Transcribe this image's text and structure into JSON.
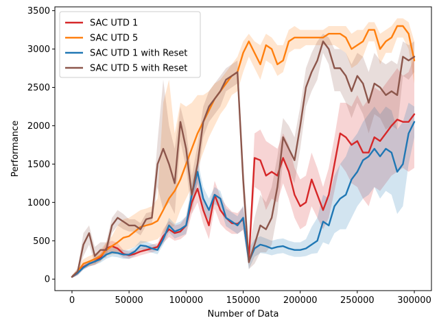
{
  "chart_data": {
    "type": "line",
    "title": "",
    "xlabel": "Number of Data",
    "ylabel": "Performance",
    "xlim": [
      -15000,
      315000
    ],
    "ylim": [
      -150,
      3550
    ],
    "xticks": [
      0,
      50000,
      100000,
      150000,
      200000,
      250000,
      300000
    ],
    "yticks": [
      0,
      500,
      1000,
      1500,
      2000,
      2500,
      3000,
      3500
    ],
    "legend_position": "top-left",
    "grid": false,
    "series": [
      {
        "name": "SAC UTD 1",
        "color": "#d62728",
        "x": [
          0,
          5000,
          10000,
          15000,
          20000,
          25000,
          30000,
          35000,
          40000,
          45000,
          50000,
          55000,
          60000,
          65000,
          70000,
          75000,
          80000,
          85000,
          90000,
          95000,
          100000,
          105000,
          110000,
          115000,
          120000,
          125000,
          130000,
          135000,
          140000,
          145000,
          150000,
          155000,
          160000,
          165000,
          170000,
          175000,
          180000,
          185000,
          190000,
          195000,
          200000,
          205000,
          210000,
          215000,
          220000,
          225000,
          230000,
          235000,
          240000,
          245000,
          250000,
          255000,
          260000,
          265000,
          270000,
          275000,
          280000,
          285000,
          290000,
          295000,
          300000
        ],
        "y": [
          30,
          80,
          160,
          200,
          230,
          280,
          400,
          430,
          400,
          330,
          310,
          330,
          360,
          380,
          400,
          420,
          560,
          650,
          600,
          620,
          700,
          1000,
          1180,
          900,
          700,
          1100,
          900,
          800,
          730,
          720,
          780,
          260,
          1580,
          1550,
          1350,
          1400,
          1350,
          1580,
          1400,
          1100,
          950,
          1000,
          1300,
          1100,
          900,
          1100,
          1500,
          1900,
          1850,
          1750,
          1800,
          1650,
          1650,
          1850,
          1800,
          1900,
          2000,
          2080,
          2050,
          2050,
          2150
        ],
        "upper": [
          50,
          110,
          190,
          240,
          280,
          330,
          470,
          500,
          470,
          380,
          360,
          380,
          410,
          430,
          450,
          470,
          650,
          760,
          700,
          720,
          820,
          1150,
          1350,
          1080,
          880,
          1280,
          1080,
          960,
          880,
          860,
          940,
          400,
          1900,
          1950,
          1800,
          1750,
          1700,
          1900,
          1750,
          1450,
          1300,
          1350,
          1650,
          1450,
          1200,
          1450,
          1850,
          2300,
          2300,
          2250,
          2400,
          2250,
          2350,
          2500,
          2450,
          2550,
          2650,
          2750,
          2650,
          2700,
          2900
        ],
        "lower": [
          15,
          50,
          130,
          165,
          185,
          235,
          340,
          360,
          330,
          280,
          265,
          285,
          310,
          330,
          350,
          370,
          470,
          550,
          500,
          520,
          580,
          850,
          1000,
          720,
          520,
          920,
          720,
          640,
          590,
          590,
          640,
          180,
          1200,
          1150,
          900,
          1050,
          1000,
          1250,
          1050,
          800,
          650,
          700,
          950,
          800,
          650,
          800,
          1150,
          1500,
          1400,
          1250,
          1200,
          1050,
          950,
          1200,
          1150,
          1250,
          1350,
          1400,
          1450,
          1400,
          1450
        ]
      },
      {
        "name": "SAC UTD 5",
        "color": "#ff7f0e",
        "x": [
          0,
          5000,
          10000,
          15000,
          20000,
          25000,
          30000,
          35000,
          40000,
          45000,
          50000,
          55000,
          60000,
          65000,
          70000,
          75000,
          80000,
          85000,
          90000,
          95000,
          100000,
          105000,
          110000,
          115000,
          120000,
          125000,
          130000,
          135000,
          140000,
          145000,
          150000,
          155000,
          160000,
          165000,
          170000,
          175000,
          180000,
          185000,
          190000,
          195000,
          200000,
          205000,
          210000,
          215000,
          220000,
          225000,
          230000,
          235000,
          240000,
          245000,
          250000,
          255000,
          260000,
          265000,
          270000,
          275000,
          280000,
          285000,
          290000,
          295000,
          300000
        ],
        "y": [
          30,
          100,
          200,
          230,
          260,
          300,
          380,
          430,
          480,
          540,
          560,
          620,
          680,
          700,
          720,
          760,
          900,
          1050,
          1150,
          1300,
          1500,
          1700,
          1900,
          2050,
          2200,
          2350,
          2450,
          2550,
          2650,
          2700,
          2950,
          3100,
          2950,
          2800,
          3050,
          3000,
          2800,
          2850,
          3100,
          3150,
          3150,
          3150,
          3150,
          3150,
          3150,
          3200,
          3200,
          3200,
          3150,
          3000,
          3050,
          3100,
          3250,
          3250,
          3000,
          3100,
          3150,
          3300,
          3300,
          3200,
          2850
        ],
        "upper": [
          50,
          140,
          260,
          300,
          330,
          380,
          480,
          560,
          700,
          780,
          800,
          850,
          900,
          920,
          950,
          1050,
          2300,
          2600,
          1900,
          2300,
          2250,
          2300,
          2400,
          2400,
          2450,
          2550,
          2600,
          2700,
          2800,
          2900,
          3100,
          3200,
          3100,
          3050,
          3200,
          3150,
          3050,
          3050,
          3250,
          3300,
          3250,
          3250,
          3250,
          3250,
          3250,
          3300,
          3300,
          3300,
          3300,
          3200,
          3250,
          3250,
          3350,
          3350,
          3200,
          3250,
          3300,
          3400,
          3400,
          3350,
          3100
        ],
        "lower": [
          15,
          60,
          140,
          170,
          190,
          230,
          300,
          320,
          330,
          370,
          390,
          420,
          460,
          480,
          500,
          520,
          600,
          650,
          700,
          900,
          1050,
          1200,
          1450,
          1650,
          1850,
          2000,
          2150,
          2250,
          2400,
          2450,
          2700,
          2900,
          2750,
          2600,
          2850,
          2800,
          2650,
          2700,
          2950,
          3000,
          3000,
          3050,
          3050,
          3050,
          3050,
          3050,
          3050,
          3000,
          2950,
          2750,
          2800,
          2900,
          3100,
          3100,
          2800,
          2950,
          2950,
          3150,
          3150,
          3000,
          2550
        ]
      },
      {
        "name": "SAC UTD 1 with Reset",
        "color": "#1f77b4",
        "x": [
          0,
          5000,
          10000,
          15000,
          20000,
          25000,
          30000,
          35000,
          40000,
          45000,
          50000,
          55000,
          60000,
          65000,
          70000,
          75000,
          80000,
          85000,
          90000,
          95000,
          100000,
          105000,
          110000,
          115000,
          120000,
          125000,
          130000,
          135000,
          140000,
          145000,
          150000,
          155000,
          160000,
          165000,
          170000,
          175000,
          180000,
          185000,
          190000,
          195000,
          200000,
          205000,
          210000,
          215000,
          220000,
          225000,
          230000,
          235000,
          240000,
          245000,
          250000,
          255000,
          260000,
          265000,
          270000,
          275000,
          280000,
          285000,
          290000,
          295000,
          300000
        ],
        "y": [
          30,
          80,
          150,
          200,
          230,
          260,
          320,
          350,
          340,
          320,
          320,
          360,
          440,
          430,
          400,
          380,
          520,
          700,
          620,
          650,
          700,
          1100,
          1400,
          1050,
          900,
          1100,
          1050,
          800,
          750,
          700,
          800,
          230,
          400,
          450,
          430,
          400,
          420,
          430,
          400,
          380,
          380,
          400,
          450,
          500,
          750,
          700,
          950,
          1050,
          1100,
          1300,
          1400,
          1550,
          1600,
          1700,
          1600,
          1700,
          1650,
          1400,
          1500,
          1900,
          2050
        ],
        "upper": [
          50,
          110,
          180,
          240,
          280,
          310,
          380,
          410,
          400,
          380,
          380,
          420,
          500,
          490,
          460,
          440,
          600,
          800,
          720,
          750,
          820,
          1250,
          1550,
          1200,
          1050,
          1200,
          1150,
          920,
          870,
          820,
          960,
          400,
          520,
          560,
          530,
          500,
          520,
          530,
          500,
          480,
          480,
          520,
          680,
          800,
          1100,
          1050,
          1350,
          1500,
          1600,
          1800,
          1900,
          2050,
          2150,
          2250,
          2150,
          2250,
          2200,
          1950,
          2050,
          2300,
          2250
        ],
        "lower": [
          15,
          50,
          120,
          165,
          185,
          215,
          265,
          295,
          285,
          265,
          265,
          305,
          385,
          375,
          345,
          325,
          450,
          610,
          530,
          560,
          590,
          960,
          1250,
          900,
          760,
          980,
          930,
          690,
          640,
          590,
          650,
          130,
          290,
          340,
          330,
          310,
          330,
          340,
          310,
          290,
          290,
          300,
          330,
          340,
          480,
          450,
          600,
          650,
          650,
          800,
          950,
          1050,
          1100,
          1200,
          1050,
          1150,
          1100,
          850,
          950,
          1500,
          1850
        ]
      },
      {
        "name": "SAC UTD 5 with Reset",
        "color": "#8c564b",
        "x": [
          0,
          5000,
          10000,
          15000,
          20000,
          25000,
          30000,
          35000,
          40000,
          45000,
          50000,
          55000,
          60000,
          65000,
          70000,
          75000,
          80000,
          85000,
          90000,
          95000,
          100000,
          105000,
          110000,
          115000,
          120000,
          125000,
          130000,
          135000,
          140000,
          145000,
          150000,
          155000,
          160000,
          165000,
          170000,
          175000,
          180000,
          185000,
          190000,
          195000,
          200000,
          205000,
          210000,
          215000,
          220000,
          225000,
          230000,
          235000,
          240000,
          245000,
          250000,
          255000,
          260000,
          265000,
          270000,
          275000,
          280000,
          285000,
          290000,
          295000,
          300000
        ],
        "y": [
          30,
          100,
          450,
          600,
          300,
          380,
          380,
          700,
          800,
          750,
          700,
          700,
          650,
          780,
          800,
          1500,
          1700,
          1500,
          1250,
          2050,
          1700,
          1100,
          1500,
          2050,
          2250,
          2350,
          2450,
          2600,
          2650,
          2700,
          1300,
          220,
          450,
          700,
          650,
          800,
          1200,
          1850,
          1700,
          1550,
          2000,
          2500,
          2700,
          2850,
          3100,
          3000,
          2750,
          2750,
          2650,
          2450,
          2650,
          2550,
          2300,
          2550,
          2500,
          2400,
          2450,
          2400,
          2900,
          2850,
          2900
        ],
        "upper": [
          50,
          140,
          600,
          700,
          420,
          480,
          480,
          800,
          900,
          850,
          780,
          780,
          730,
          860,
          880,
          1800,
          2600,
          2000,
          1700,
          2250,
          1950,
          1350,
          1750,
          2250,
          2450,
          2550,
          2650,
          2750,
          2800,
          2850,
          1550,
          400,
          800,
          1100,
          1000,
          1200,
          1600,
          2100,
          2000,
          1850,
          2250,
          2750,
          2950,
          3100,
          3200,
          3150,
          3000,
          3000,
          2950,
          2800,
          2950,
          2900,
          2700,
          2950,
          2850,
          2800,
          2850,
          2800,
          3100,
          3050,
          3100
        ],
        "lower": [
          15,
          60,
          300,
          450,
          200,
          280,
          280,
          600,
          700,
          650,
          620,
          620,
          570,
          700,
          720,
          1200,
          900,
          1000,
          850,
          1800,
          1450,
          850,
          1250,
          1850,
          2050,
          2150,
          2250,
          2450,
          2500,
          2550,
          1050,
          130,
          200,
          350,
          350,
          450,
          850,
          1550,
          1400,
          1250,
          1700,
          2250,
          2450,
          2600,
          2950,
          2800,
          2450,
          2450,
          2300,
          2100,
          2300,
          2150,
          1900,
          2150,
          2100,
          1950,
          2000,
          1950,
          2650,
          2600,
          2700
        ]
      }
    ]
  }
}
